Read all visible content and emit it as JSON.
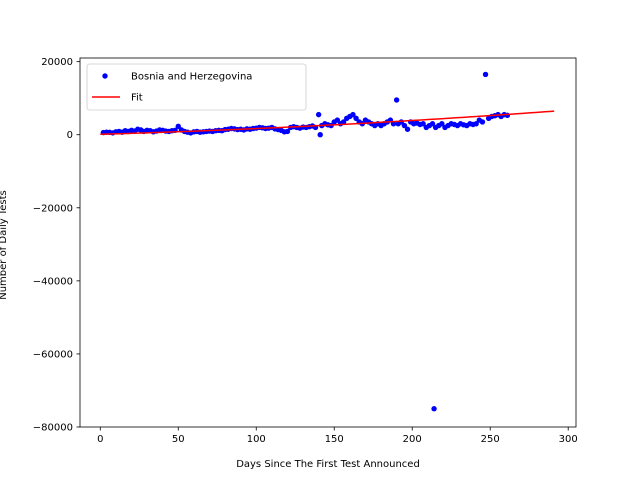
{
  "chart_data": {
    "type": "scatter",
    "xlabel": "Days Since The First Test Announced",
    "ylabel": "Number of Daily Tests",
    "xlim": [
      -13,
      305
    ],
    "ylim": [
      -80000,
      21000
    ],
    "xticks": [
      0,
      50,
      100,
      150,
      200,
      250,
      300
    ],
    "yticks": [
      -80000,
      -60000,
      -40000,
      -20000,
      0,
      20000
    ],
    "legend": {
      "placement": "top-left"
    },
    "grid": false,
    "colors": {
      "points": "#0000ff",
      "fit": "#ff0000"
    },
    "series": [
      {
        "name": "Bosnia and Herzegovina",
        "kind": "points",
        "points": [
          [
            2,
            600
          ],
          [
            4,
            700
          ],
          [
            6,
            650
          ],
          [
            8,
            500
          ],
          [
            10,
            800
          ],
          [
            12,
            900
          ],
          [
            14,
            700
          ],
          [
            16,
            1100
          ],
          [
            18,
            900
          ],
          [
            20,
            1200
          ],
          [
            22,
            1000
          ],
          [
            24,
            1500
          ],
          [
            26,
            1300
          ],
          [
            28,
            900
          ],
          [
            30,
            1200
          ],
          [
            32,
            1100
          ],
          [
            34,
            800
          ],
          [
            36,
            1000
          ],
          [
            38,
            1300
          ],
          [
            40,
            1200
          ],
          [
            42,
            1000
          ],
          [
            44,
            900
          ],
          [
            46,
            1100
          ],
          [
            48,
            1200
          ],
          [
            50,
            2300
          ],
          [
            52,
            1300
          ],
          [
            54,
            900
          ],
          [
            56,
            700
          ],
          [
            58,
            500
          ],
          [
            60,
            800
          ],
          [
            62,
            900
          ],
          [
            64,
            700
          ],
          [
            66,
            800
          ],
          [
            68,
            900
          ],
          [
            70,
            1000
          ],
          [
            72,
            900
          ],
          [
            74,
            1100
          ],
          [
            76,
            1200
          ],
          [
            78,
            1100
          ],
          [
            80,
            1400
          ],
          [
            82,
            1500
          ],
          [
            84,
            1700
          ],
          [
            86,
            1600
          ],
          [
            88,
            1400
          ],
          [
            90,
            1500
          ],
          [
            92,
            1300
          ],
          [
            94,
            1600
          ],
          [
            96,
            1500
          ],
          [
            98,
            1700
          ],
          [
            100,
            1800
          ],
          [
            102,
            2000
          ],
          [
            104,
            1900
          ],
          [
            106,
            1700
          ],
          [
            108,
            1800
          ],
          [
            110,
            2000
          ],
          [
            112,
            1600
          ],
          [
            114,
            1400
          ],
          [
            116,
            1200
          ],
          [
            118,
            800
          ],
          [
            120,
            900
          ],
          [
            122,
            2000
          ],
          [
            124,
            2200
          ],
          [
            126,
            2000
          ],
          [
            128,
            1800
          ],
          [
            130,
            2100
          ],
          [
            132,
            2000
          ],
          [
            134,
            2200
          ],
          [
            136,
            2400
          ],
          [
            138,
            2000
          ],
          [
            140,
            5500
          ],
          [
            141,
            0
          ],
          [
            142,
            2500
          ],
          [
            144,
            3000
          ],
          [
            146,
            2700
          ],
          [
            148,
            2500
          ],
          [
            150,
            3500
          ],
          [
            152,
            4000
          ],
          [
            154,
            3000
          ],
          [
            156,
            3500
          ],
          [
            158,
            4500
          ],
          [
            160,
            5000
          ],
          [
            162,
            5500
          ],
          [
            164,
            4500
          ],
          [
            166,
            3500
          ],
          [
            168,
            3000
          ],
          [
            170,
            4000
          ],
          [
            172,
            3500
          ],
          [
            174,
            3000
          ],
          [
            176,
            2500
          ],
          [
            178,
            3000
          ],
          [
            180,
            2500
          ],
          [
            182,
            3000
          ],
          [
            184,
            3500
          ],
          [
            186,
            4000
          ],
          [
            188,
            3000
          ],
          [
            190,
            9500
          ],
          [
            191,
            3000
          ],
          [
            193,
            3500
          ],
          [
            195,
            2500
          ],
          [
            197,
            1500
          ],
          [
            199,
            3500
          ],
          [
            201,
            3000
          ],
          [
            203,
            3200
          ],
          [
            205,
            2800
          ],
          [
            207,
            3000
          ],
          [
            209,
            2000
          ],
          [
            211,
            2500
          ],
          [
            213,
            3000
          ],
          [
            214,
            -75000
          ],
          [
            215,
            2000
          ],
          [
            217,
            2500
          ],
          [
            219,
            3000
          ],
          [
            221,
            2000
          ],
          [
            223,
            2500
          ],
          [
            225,
            3000
          ],
          [
            227,
            2800
          ],
          [
            229,
            2500
          ],
          [
            231,
            3000
          ],
          [
            233,
            2700
          ],
          [
            235,
            2500
          ],
          [
            237,
            3000
          ],
          [
            239,
            2800
          ],
          [
            241,
            3000
          ],
          [
            243,
            4000
          ],
          [
            245,
            3500
          ],
          [
            247,
            16500
          ],
          [
            249,
            4500
          ],
          [
            251,
            5000
          ],
          [
            253,
            5200
          ],
          [
            255,
            5500
          ],
          [
            257,
            5000
          ],
          [
            259,
            5500
          ],
          [
            261,
            5300
          ]
        ]
      },
      {
        "name": "Fit",
        "kind": "line",
        "coefficients": [
          115,
          12.5,
          0.032
        ]
      }
    ]
  }
}
